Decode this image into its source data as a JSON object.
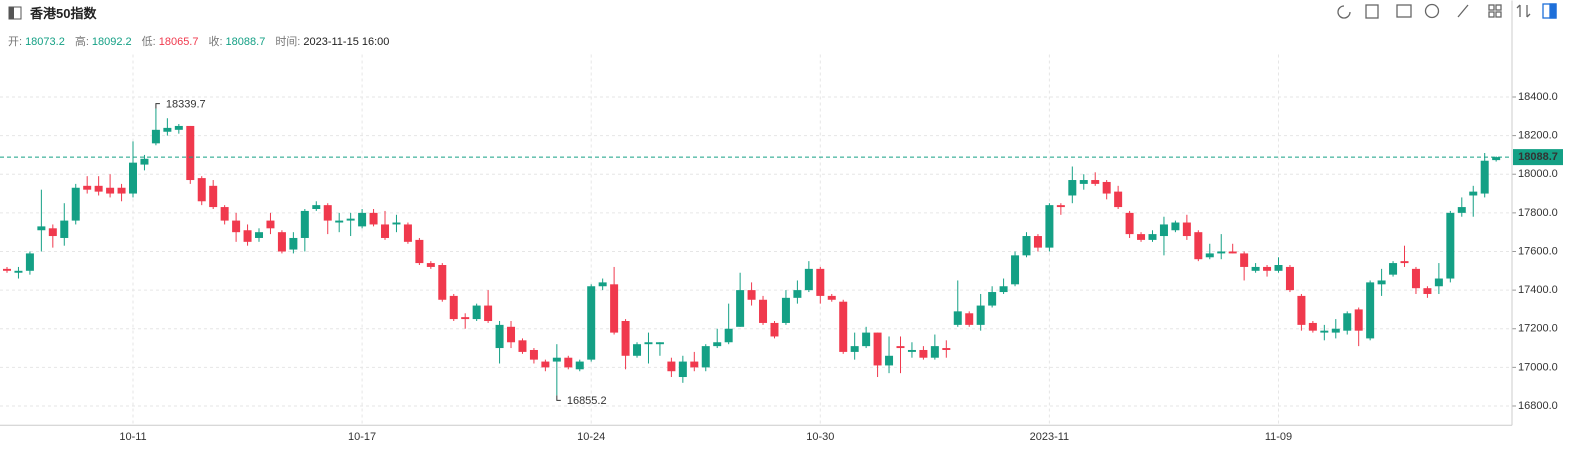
{
  "chart_data": {
    "type": "candlestick",
    "title": "香港50指数",
    "info": [
      {
        "label": "开:",
        "value": 18073.2,
        "color": "#14a085"
      },
      {
        "label": "高:",
        "value": 18092.2,
        "color": "#14a085"
      },
      {
        "label": "低:",
        "value": 18065.7,
        "color": "#f0394d"
      },
      {
        "label": "收:",
        "value": 18088.7,
        "color": "#14a085"
      },
      {
        "label": "时间:",
        "value": "2023-11-15 16:00",
        "color": "#222"
      }
    ],
    "categories": [
      null,
      null,
      null,
      null,
      null,
      null,
      null,
      null,
      null,
      null,
      null,
      "10-11",
      null,
      null,
      null,
      null,
      null,
      null,
      null,
      null,
      null,
      null,
      null,
      null,
      null,
      null,
      null,
      null,
      null,
      null,
      null,
      "10-17",
      null,
      null,
      null,
      null,
      null,
      null,
      null,
      null,
      null,
      null,
      null,
      null,
      null,
      null,
      null,
      null,
      null,
      null,
      null,
      "10-24",
      null,
      null,
      null,
      null,
      null,
      null,
      null,
      null,
      null,
      null,
      null,
      null,
      null,
      null,
      null,
      null,
      null,
      null,
      null,
      "10-30",
      null,
      null,
      null,
      null,
      null,
      null,
      null,
      null,
      null,
      null,
      null,
      null,
      null,
      null,
      null,
      null,
      null,
      null,
      null,
      "2023-11",
      null,
      null,
      null,
      null,
      null,
      null,
      null,
      null,
      null,
      null,
      null,
      null,
      null,
      null,
      null,
      null,
      null,
      null,
      null,
      "11-09",
      null,
      null,
      null,
      null,
      null,
      null,
      null,
      null,
      null,
      null,
      null,
      null,
      null,
      null,
      null,
      null,
      null,
      null,
      null
    ],
    "open": [
      17510,
      17490,
      17500,
      17710,
      17720,
      17670,
      17760,
      17940,
      17940,
      17930,
      17930,
      17900,
      18050,
      18160,
      18220,
      18230,
      18250,
      17980,
      17940,
      17830,
      17760,
      17710,
      17670,
      17760,
      17700,
      17610,
      17670,
      17820,
      17840,
      17750,
      17760,
      17730,
      17800,
      17740,
      17740,
      17740,
      17660,
      17540,
      17530,
      17370,
      17260,
      17250,
      17320,
      17100,
      17210,
      17140,
      17090,
      17030,
      17030,
      17050,
      16990,
      17040,
      17420,
      17430,
      17240,
      17060,
      17120,
      17120,
      17030,
      16950,
      17030,
      17000,
      17110,
      17130,
      17210,
      17400,
      17350,
      17230,
      17230,
      17360,
      17400,
      17510,
      17370,
      17340,
      17080,
      17110,
      17180,
      17010,
      17110,
      17080,
      17090,
      17050,
      17100,
      17220,
      17280,
      17220,
      17320,
      17390,
      17430,
      17580,
      17680,
      17620,
      17840,
      17890,
      17950,
      17970,
      17960,
      17910,
      17800,
      17690,
      17660,
      17680,
      17710,
      17750,
      17700,
      17570,
      17590,
      17600,
      17590,
      17500,
      17520,
      17500,
      17520,
      17370,
      17230,
      17180,
      17180,
      17190,
      17300,
      17150,
      17430,
      17480,
      17550,
      17510,
      17410,
      17420,
      17460,
      17800,
      17890,
      17900,
      18073.2
    ],
    "high": [
      17520,
      17520,
      17600,
      17920,
      17740,
      17850,
      17950,
      17990,
      17990,
      18000,
      17950,
      18170,
      18100,
      18339.7,
      18290,
      18260,
      18250,
      17990,
      17970,
      17840,
      17800,
      17740,
      17720,
      17800,
      17710,
      17700,
      17820,
      17860,
      17850,
      17800,
      17800,
      17820,
      17820,
      17810,
      17790,
      17750,
      17670,
      17550,
      17540,
      17380,
      17280,
      17330,
      17400,
      17240,
      17240,
      17150,
      17100,
      17040,
      17120,
      17060,
      17040,
      17430,
      17460,
      17520,
      17250,
      17130,
      17180,
      17130,
      17050,
      17060,
      17080,
      17120,
      17200,
      17330,
      17490,
      17440,
      17370,
      17240,
      17400,
      17450,
      17550,
      17520,
      17380,
      17350,
      17180,
      17210,
      17180,
      17160,
      17160,
      17130,
      17110,
      17170,
      17140,
      17450,
      17290,
      17380,
      17420,
      17460,
      17600,
      17700,
      17690,
      17850,
      17850,
      18040,
      18000,
      18010,
      17970,
      17940,
      17810,
      17700,
      17710,
      17780,
      17760,
      17790,
      17710,
      17640,
      17690,
      17640,
      17600,
      17540,
      17530,
      17570,
      17530,
      17380,
      17240,
      17220,
      17250,
      17290,
      17310,
      17450,
      17510,
      17550,
      17630,
      17520,
      17420,
      17540,
      17810,
      17880,
      17940,
      18110,
      18092.2
    ],
    "low": [
      17490,
      17460,
      17480,
      17600,
      17620,
      17630,
      17740,
      17900,
      17890,
      17880,
      17860,
      17880,
      18020,
      18150,
      18200,
      18210,
      17950,
      17840,
      17820,
      17740,
      17650,
      17630,
      17650,
      17690,
      17590,
      17590,
      17600,
      17810,
      17690,
      17700,
      17680,
      17720,
      17730,
      17660,
      17700,
      17640,
      17530,
      17510,
      17340,
      17240,
      17200,
      17240,
      17230,
      17020,
      17100,
      17070,
      17020,
      16980,
      16855.2,
      16990,
      16980,
      17030,
      17400,
      17170,
      16990,
      17050,
      17020,
      17060,
      16950,
      16920,
      16980,
      16980,
      17100,
      17120,
      17210,
      17320,
      17220,
      17150,
      17220,
      17330,
      17390,
      17330,
      17340,
      17070,
      17040,
      17100,
      16950,
      16970,
      16970,
      17050,
      17040,
      17040,
      17050,
      17210,
      17210,
      17190,
      17310,
      17380,
      17420,
      17570,
      17600,
      17600,
      17790,
      17850,
      17920,
      17940,
      17870,
      17820,
      17670,
      17650,
      17650,
      17580,
      17700,
      17660,
      17550,
      17560,
      17560,
      17590,
      17450,
      17490,
      17470,
      17490,
      17390,
      17190,
      17180,
      17140,
      17150,
      17170,
      17110,
      17140,
      17370,
      17470,
      17520,
      17380,
      17360,
      17380,
      17440,
      17780,
      17780,
      17880,
      18065.7
    ],
    "close": [
      17500,
      17500,
      17590,
      17730,
      17680,
      17760,
      17930,
      17920,
      17910,
      17900,
      17900,
      18060,
      18080,
      18230,
      18240,
      18250,
      17970,
      17860,
      17830,
      17760,
      17700,
      17650,
      17700,
      17720,
      17600,
      17670,
      17810,
      17840,
      17760,
      17760,
      17770,
      17800,
      17740,
      17670,
      17750,
      17650,
      17540,
      17520,
      17350,
      17250,
      17250,
      17320,
      17240,
      17220,
      17130,
      17080,
      17040,
      17000,
      17050,
      17000,
      17030,
      17420,
      17440,
      17180,
      17060,
      17120,
      17130,
      17130,
      16980,
      17030,
      17000,
      17110,
      17130,
      17200,
      17400,
      17350,
      17230,
      17160,
      17360,
      17400,
      17510,
      17370,
      17350,
      17080,
      17110,
      17180,
      17010,
      17060,
      17100,
      17090,
      17050,
      17110,
      17090,
      17290,
      17220,
      17320,
      17390,
      17420,
      17580,
      17680,
      17620,
      17840,
      17830,
      17970,
      17970,
      17950,
      17900,
      17830,
      17690,
      17660,
      17690,
      17740,
      17750,
      17680,
      17560,
      17590,
      17600,
      17590,
      17520,
      17520,
      17500,
      17530,
      17400,
      17220,
      17190,
      17190,
      17200,
      17280,
      17190,
      17440,
      17450,
      17540,
      17540,
      17410,
      17380,
      17460,
      17800,
      17830,
      17910,
      18070,
      18088.7
    ],
    "up_color": "#14a085",
    "down_color": "#f0394d",
    "ylim": [
      16700,
      18620
    ],
    "yticks": [
      {
        "value": 16800,
        "label": "16800.0"
      },
      {
        "value": 17000,
        "label": "17000.0"
      },
      {
        "value": 17200,
        "label": "17200.0"
      },
      {
        "value": 17400,
        "label": "17400.0"
      },
      {
        "value": 17600,
        "label": "17600.0"
      },
      {
        "value": 17800,
        "label": "17800.0"
      },
      {
        "value": 18000,
        "label": "18000.0"
      },
      {
        "value": 18200,
        "label": "18200.0"
      },
      {
        "value": 18400,
        "label": "18400.0"
      }
    ],
    "grid": true
  }
}
